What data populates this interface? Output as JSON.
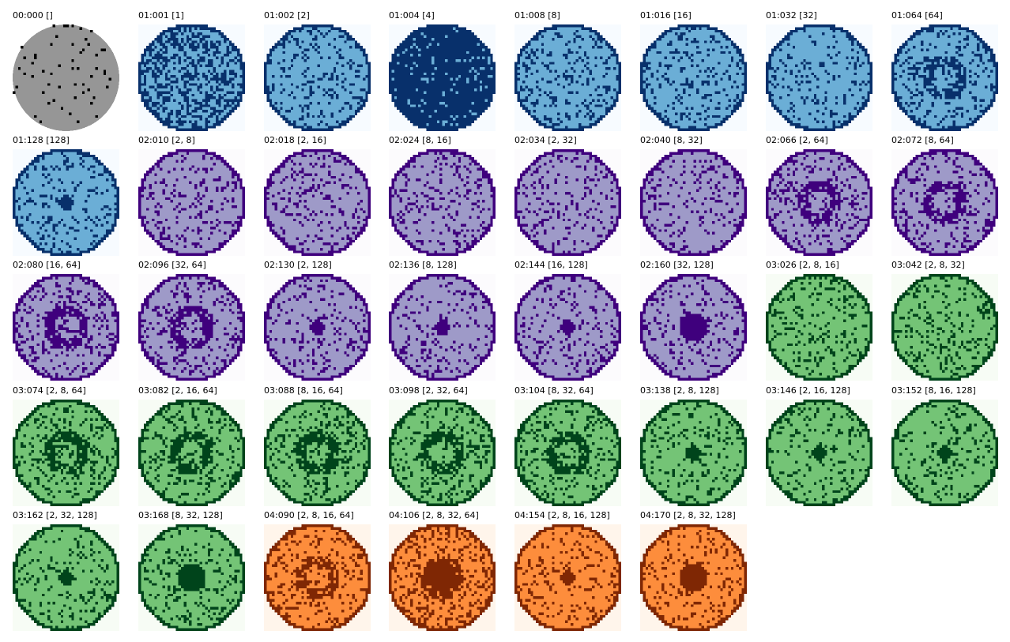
{
  "palettes": {
    "gray": {
      "background": "#ffffff",
      "fill": "#969696",
      "mark": "#000000"
    },
    "blue": {
      "background": "#f7fbff",
      "fill": "#6baed6",
      "mark": "#08306b"
    },
    "purple": {
      "background": "#fcfbfd",
      "fill": "#9e9ac8",
      "mark": "#3f007d"
    },
    "green": {
      "background": "#f7fcf5",
      "fill": "#74c476",
      "mark": "#00441b"
    },
    "orange": {
      "background": "#fff5eb",
      "fill": "#fd8d3c",
      "mark": "#7f2704"
    }
  },
  "panels": [
    {
      "label": "00:000 []",
      "palette": "gray",
      "noise": 0.04,
      "core": 0,
      "ring": 0,
      "streaks": 0
    },
    {
      "label": "01:001 [1]",
      "palette": "blue",
      "noise": 0.45,
      "core": 0,
      "ring": 0,
      "streaks": 0
    },
    {
      "label": "01:002 [2]",
      "palette": "blue",
      "noise": 0.18,
      "core": 0,
      "ring": 0,
      "streaks": 1
    },
    {
      "label": "01:004 [4]",
      "palette": "blue",
      "noise": 0.9,
      "core": 0,
      "ring": 0,
      "streaks": 0
    },
    {
      "label": "01:008 [8]",
      "palette": "blue",
      "noise": 0.18,
      "core": 0,
      "ring": 0,
      "streaks": 1
    },
    {
      "label": "01:016 [16]",
      "palette": "blue",
      "noise": 0.2,
      "core": 0,
      "ring": 0,
      "streaks": 0
    },
    {
      "label": "01:032 [32]",
      "palette": "blue",
      "noise": 0.15,
      "core": 0,
      "ring": 0,
      "streaks": 0
    },
    {
      "label": "01:064 [64]",
      "palette": "blue",
      "noise": 0.2,
      "core": 0,
      "ring": 1,
      "streaks": 0
    },
    {
      "label": "01:128 [128]",
      "palette": "blue",
      "noise": 0.15,
      "core": 1,
      "ring": 0,
      "streaks": 0
    },
    {
      "label": "02:010 [2, 8]",
      "palette": "purple",
      "noise": 0.18,
      "core": 0,
      "ring": 0,
      "streaks": 1
    },
    {
      "label": "02:018 [2, 16]",
      "palette": "purple",
      "noise": 0.18,
      "core": 0,
      "ring": 0,
      "streaks": 1
    },
    {
      "label": "02:024 [8, 16]",
      "palette": "purple",
      "noise": 0.18,
      "core": 0,
      "ring": 0,
      "streaks": 1
    },
    {
      "label": "02:034 [2, 32]",
      "palette": "purple",
      "noise": 0.15,
      "core": 0,
      "ring": 0,
      "streaks": 0
    },
    {
      "label": "02:040 [8, 32]",
      "palette": "purple",
      "noise": 0.15,
      "core": 0,
      "ring": 0,
      "streaks": 1
    },
    {
      "label": "02:066 [2, 64]",
      "palette": "purple",
      "noise": 0.2,
      "core": 0,
      "ring": 1,
      "streaks": 1
    },
    {
      "label": "02:072 [8, 64]",
      "palette": "purple",
      "noise": 0.2,
      "core": 0,
      "ring": 1,
      "streaks": 1
    },
    {
      "label": "02:080 [16, 64]",
      "palette": "purple",
      "noise": 0.2,
      "core": 0,
      "ring": 1,
      "streaks": 0
    },
    {
      "label": "02:096 [32, 64]",
      "palette": "purple",
      "noise": 0.2,
      "core": 0,
      "ring": 1,
      "streaks": 0
    },
    {
      "label": "02:130 [2, 128]",
      "palette": "purple",
      "noise": 0.15,
      "core": 1,
      "ring": 0,
      "streaks": 1
    },
    {
      "label": "02:136 [8, 128]",
      "palette": "purple",
      "noise": 0.15,
      "core": 1,
      "ring": 0,
      "streaks": 1
    },
    {
      "label": "02:144 [16, 128]",
      "palette": "purple",
      "noise": 0.15,
      "core": 1,
      "ring": 0,
      "streaks": 0
    },
    {
      "label": "02:160 [32, 128]",
      "palette": "purple",
      "noise": 0.15,
      "core": 2,
      "ring": 0,
      "streaks": 0
    },
    {
      "label": "03:026 [2, 8, 16]",
      "palette": "green",
      "noise": 0.18,
      "core": 0,
      "ring": 0,
      "streaks": 1
    },
    {
      "label": "03:042 [2, 8, 32]",
      "palette": "green",
      "noise": 0.18,
      "core": 0,
      "ring": 0,
      "streaks": 1
    },
    {
      "label": "03:074 [2, 8, 64]",
      "palette": "green",
      "noise": 0.2,
      "core": 0,
      "ring": 1,
      "streaks": 1
    },
    {
      "label": "03:082 [2, 16, 64]",
      "palette": "green",
      "noise": 0.2,
      "core": 0,
      "ring": 1,
      "streaks": 1
    },
    {
      "label": "03:088 [8, 16, 64]",
      "palette": "green",
      "noise": 0.2,
      "core": 0,
      "ring": 1,
      "streaks": 1
    },
    {
      "label": "03:098 [2, 32, 64]",
      "palette": "green",
      "noise": 0.2,
      "core": 0,
      "ring": 1,
      "streaks": 0
    },
    {
      "label": "03:104 [8, 32, 64]",
      "palette": "green",
      "noise": 0.2,
      "core": 0,
      "ring": 1,
      "streaks": 1
    },
    {
      "label": "03:138 [2, 8, 128]",
      "palette": "green",
      "noise": 0.15,
      "core": 1,
      "ring": 0,
      "streaks": 1
    },
    {
      "label": "03:146 [2, 16, 128]",
      "palette": "green",
      "noise": 0.15,
      "core": 1,
      "ring": 0,
      "streaks": 1
    },
    {
      "label": "03:152 [8, 16, 128]",
      "palette": "green",
      "noise": 0.15,
      "core": 1,
      "ring": 0,
      "streaks": 1
    },
    {
      "label": "03:162 [2, 32, 128]",
      "palette": "green",
      "noise": 0.15,
      "core": 1,
      "ring": 0,
      "streaks": 1
    },
    {
      "label": "03:168 [8, 32, 128]",
      "palette": "green",
      "noise": 0.15,
      "core": 2,
      "ring": 0,
      "streaks": 1
    },
    {
      "label": "04:090 [2, 8, 16, 64]",
      "palette": "orange",
      "noise": 0.2,
      "core": 0,
      "ring": 1,
      "streaks": 1
    },
    {
      "label": "04:106 [2, 8, 32, 64]",
      "palette": "orange",
      "noise": 0.25,
      "core": 2,
      "ring": 1,
      "streaks": 1
    },
    {
      "label": "04:154 [2, 8, 16, 128]",
      "palette": "orange",
      "noise": 0.15,
      "core": 1,
      "ring": 0,
      "streaks": 1
    },
    {
      "label": "04:170 [2, 8, 32, 128]",
      "palette": "orange",
      "noise": 0.15,
      "core": 2,
      "ring": 0,
      "streaks": 1
    }
  ]
}
